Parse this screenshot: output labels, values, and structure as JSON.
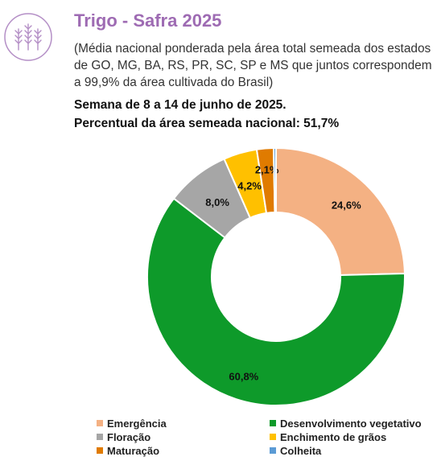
{
  "header": {
    "title": "Trigo - Safra 2025",
    "subtitle": "(Média nacional ponderada pela área total semeada dos estados de GO, MG, BA, RS, PR, SC, SP e MS que juntos correspondem a 99,9% da área cultivada do Brasil)",
    "week": "Semana de 8 a 14 de junho de 2025.",
    "percent": "Percentual da área semeada nacional: 51,7%",
    "icon": "wheat-icon",
    "accent_color": "#9e6bb3"
  },
  "chart_data": {
    "type": "pie",
    "donut": true,
    "categories": [
      "Emergência",
      "Desenvolvimento vegetativo",
      "Floração",
      "Enchimento de grãos",
      "Maturação",
      "Colheita"
    ],
    "values": [
      24.6,
      60.8,
      8.0,
      4.2,
      2.1,
      0.3
    ],
    "labels": [
      "24,6%",
      "60,8%",
      "8,0%",
      "4,2%",
      "2,1%",
      ""
    ],
    "colors": [
      "#f4b183",
      "#0e9a2a",
      "#a6a6a6",
      "#ffc000",
      "#e07b00",
      "#5b9bd5"
    ],
    "legend_position": "bottom"
  }
}
